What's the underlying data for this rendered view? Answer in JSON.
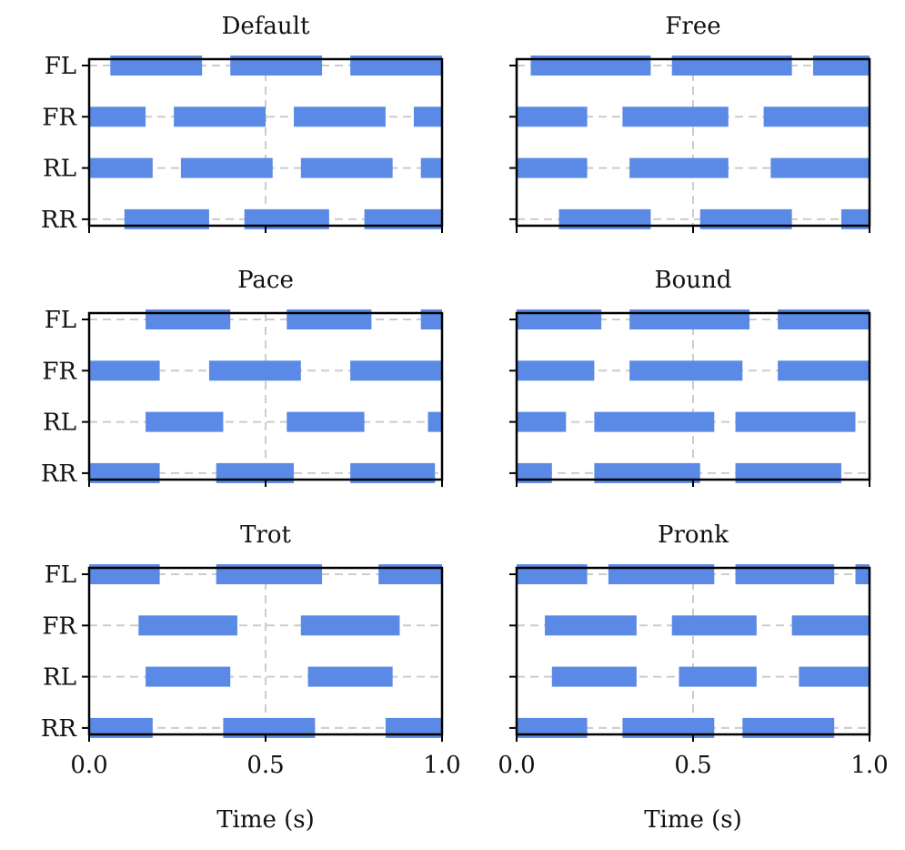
{
  "figure": {
    "xlabel": "Time (s)",
    "bar_color": "#5b8ae6",
    "grid_color": "#cccccc"
  },
  "chart_data": [
    {
      "type": "bar",
      "orientation": "horizontal-gantt",
      "title": "Default",
      "categories": [
        "FL",
        "FR",
        "RL",
        "RR"
      ],
      "xlim": [
        0.0,
        1.0
      ],
      "xticks": [
        "0.0",
        "0.5",
        "1.0"
      ],
      "xlabel": "Time (s)",
      "series": [
        {
          "name": "FL",
          "intervals": [
            [
              0.06,
              0.32
            ],
            [
              0.4,
              0.66
            ],
            [
              0.74,
              1.0
            ]
          ]
        },
        {
          "name": "FR",
          "intervals": [
            [
              0.0,
              0.16
            ],
            [
              0.24,
              0.5
            ],
            [
              0.58,
              0.84
            ],
            [
              0.92,
              1.0
            ]
          ]
        },
        {
          "name": "RL",
          "intervals": [
            [
              0.0,
              0.18
            ],
            [
              0.26,
              0.52
            ],
            [
              0.6,
              0.86
            ],
            [
              0.94,
              1.0
            ]
          ]
        },
        {
          "name": "RR",
          "intervals": [
            [
              0.1,
              0.34
            ],
            [
              0.44,
              0.68
            ],
            [
              0.78,
              1.0
            ]
          ]
        }
      ]
    },
    {
      "type": "bar",
      "orientation": "horizontal-gantt",
      "title": "Free",
      "categories": [
        "FL",
        "FR",
        "RL",
        "RR"
      ],
      "xlim": [
        0.0,
        1.0
      ],
      "xticks": [
        "0.0",
        "0.5",
        "1.0"
      ],
      "xlabel": "Time (s)",
      "series": [
        {
          "name": "FL",
          "intervals": [
            [
              0.04,
              0.38
            ],
            [
              0.44,
              0.78
            ],
            [
              0.84,
              1.0
            ]
          ]
        },
        {
          "name": "FR",
          "intervals": [
            [
              0.0,
              0.2
            ],
            [
              0.3,
              0.6
            ],
            [
              0.7,
              1.0
            ]
          ]
        },
        {
          "name": "RL",
          "intervals": [
            [
              0.0,
              0.2
            ],
            [
              0.32,
              0.6
            ],
            [
              0.72,
              1.0
            ]
          ]
        },
        {
          "name": "RR",
          "intervals": [
            [
              0.12,
              0.38
            ],
            [
              0.52,
              0.78
            ],
            [
              0.92,
              1.0
            ]
          ]
        }
      ]
    },
    {
      "type": "bar",
      "orientation": "horizontal-gantt",
      "title": "Pace",
      "categories": [
        "FL",
        "FR",
        "RL",
        "RR"
      ],
      "xlim": [
        0.0,
        1.0
      ],
      "xticks": [
        "0.0",
        "0.5",
        "1.0"
      ],
      "xlabel": "Time (s)",
      "series": [
        {
          "name": "FL",
          "intervals": [
            [
              0.16,
              0.4
            ],
            [
              0.56,
              0.8
            ],
            [
              0.94,
              1.0
            ]
          ]
        },
        {
          "name": "FR",
          "intervals": [
            [
              0.0,
              0.2
            ],
            [
              0.34,
              0.6
            ],
            [
              0.74,
              1.0
            ]
          ]
        },
        {
          "name": "RL",
          "intervals": [
            [
              0.16,
              0.38
            ],
            [
              0.56,
              0.78
            ],
            [
              0.96,
              1.0
            ]
          ]
        },
        {
          "name": "RR",
          "intervals": [
            [
              0.0,
              0.2
            ],
            [
              0.36,
              0.58
            ],
            [
              0.74,
              0.98
            ]
          ]
        }
      ]
    },
    {
      "type": "bar",
      "orientation": "horizontal-gantt",
      "title": "Bound",
      "categories": [
        "FL",
        "FR",
        "RL",
        "RR"
      ],
      "xlim": [
        0.0,
        1.0
      ],
      "xticks": [
        "0.0",
        "0.5",
        "1.0"
      ],
      "xlabel": "Time (s)",
      "series": [
        {
          "name": "FL",
          "intervals": [
            [
              0.0,
              0.24
            ],
            [
              0.32,
              0.66
            ],
            [
              0.74,
              1.0
            ]
          ]
        },
        {
          "name": "FR",
          "intervals": [
            [
              0.0,
              0.22
            ],
            [
              0.32,
              0.64
            ],
            [
              0.74,
              1.0
            ]
          ]
        },
        {
          "name": "RL",
          "intervals": [
            [
              0.0,
              0.14
            ],
            [
              0.22,
              0.56
            ],
            [
              0.62,
              0.96
            ]
          ]
        },
        {
          "name": "RR",
          "intervals": [
            [
              0.0,
              0.1
            ],
            [
              0.22,
              0.52
            ],
            [
              0.62,
              0.92
            ]
          ]
        }
      ]
    },
    {
      "type": "bar",
      "orientation": "horizontal-gantt",
      "title": "Trot",
      "categories": [
        "FL",
        "FR",
        "RL",
        "RR"
      ],
      "xlim": [
        0.0,
        1.0
      ],
      "xticks": [
        "0.0",
        "0.5",
        "1.0"
      ],
      "xlabel": "Time (s)",
      "series": [
        {
          "name": "FL",
          "intervals": [
            [
              0.0,
              0.2
            ],
            [
              0.36,
              0.66
            ],
            [
              0.82,
              1.0
            ]
          ]
        },
        {
          "name": "FR",
          "intervals": [
            [
              0.14,
              0.42
            ],
            [
              0.6,
              0.88
            ]
          ]
        },
        {
          "name": "RL",
          "intervals": [
            [
              0.16,
              0.4
            ],
            [
              0.62,
              0.86
            ]
          ]
        },
        {
          "name": "RR",
          "intervals": [
            [
              0.0,
              0.18
            ],
            [
              0.38,
              0.64
            ],
            [
              0.84,
              1.0
            ]
          ]
        }
      ]
    },
    {
      "type": "bar",
      "orientation": "horizontal-gantt",
      "title": "Pronk",
      "categories": [
        "FL",
        "FR",
        "RL",
        "RR"
      ],
      "xlim": [
        0.0,
        1.0
      ],
      "xticks": [
        "0.0",
        "0.5",
        "1.0"
      ],
      "xlabel": "Time (s)",
      "series": [
        {
          "name": "FL",
          "intervals": [
            [
              0.0,
              0.2
            ],
            [
              0.26,
              0.56
            ],
            [
              0.62,
              0.9
            ],
            [
              0.96,
              1.0
            ]
          ]
        },
        {
          "name": "FR",
          "intervals": [
            [
              0.08,
              0.34
            ],
            [
              0.44,
              0.68
            ],
            [
              0.78,
              1.0
            ]
          ]
        },
        {
          "name": "RL",
          "intervals": [
            [
              0.1,
              0.34
            ],
            [
              0.46,
              0.68
            ],
            [
              0.8,
              1.0
            ]
          ]
        },
        {
          "name": "RR",
          "intervals": [
            [
              0.0,
              0.2
            ],
            [
              0.3,
              0.56
            ],
            [
              0.64,
              0.9
            ]
          ]
        }
      ]
    }
  ]
}
